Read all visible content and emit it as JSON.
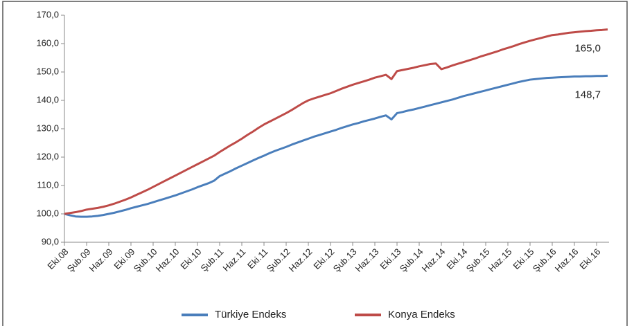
{
  "chart_data": {
    "type": "line",
    "categories": [
      "Eki.08",
      null,
      null,
      null,
      "Şub.09",
      null,
      null,
      null,
      "Haz.09",
      null,
      null,
      null,
      "Eki.09",
      null,
      null,
      null,
      "Şub.10",
      null,
      null,
      null,
      "Haz.10",
      null,
      null,
      null,
      "Eki.10",
      null,
      null,
      null,
      "Şub.11",
      null,
      null,
      null,
      "Haz.11",
      null,
      null,
      null,
      "Eki.11",
      null,
      null,
      null,
      "Şub.12",
      null,
      null,
      null,
      "Haz.12",
      null,
      null,
      null,
      "Eki.12",
      null,
      null,
      null,
      "Şub.13",
      null,
      null,
      null,
      "Haz.13",
      null,
      null,
      null,
      "Eki.13",
      null,
      null,
      null,
      "Şub.14",
      null,
      null,
      null,
      "Haz.14",
      null,
      null,
      null,
      "Eki.14",
      null,
      null,
      null,
      "Şub.15",
      null,
      null,
      null,
      "Haz.15",
      null,
      null,
      null,
      "Eki.15",
      null,
      null,
      null,
      "Şub.16",
      null,
      null,
      null,
      "Haz.16",
      null,
      null,
      null,
      "Eki.16",
      null,
      null
    ],
    "series": [
      {
        "name": "Türkiye Endeks",
        "color": "#4a7ebb",
        "values": [
          100.0,
          99.5,
          99.1,
          99.0,
          99.0,
          99.1,
          99.3,
          99.6,
          100.0,
          100.4,
          100.9,
          101.4,
          102.0,
          102.5,
          103.0,
          103.5,
          104.1,
          104.7,
          105.3,
          105.9,
          106.5,
          107.2,
          107.9,
          108.6,
          109.4,
          110.1,
          110.8,
          111.7,
          113.3,
          114.2,
          115.1,
          116.1,
          117.0,
          117.9,
          118.8,
          119.7,
          120.5,
          121.4,
          122.2,
          122.9,
          123.6,
          124.4,
          125.1,
          125.8,
          126.5,
          127.2,
          127.8,
          128.4,
          129.0,
          129.6,
          130.3,
          130.9,
          131.5,
          132.0,
          132.6,
          133.1,
          133.6,
          134.2,
          134.7,
          133.3,
          135.5,
          135.9,
          136.4,
          136.8,
          137.3,
          137.8,
          138.3,
          138.8,
          139.3,
          139.8,
          140.3,
          140.9,
          141.5,
          142.0,
          142.5,
          143.0,
          143.5,
          144.0,
          144.5,
          145.0,
          145.5,
          146.0,
          146.5,
          146.9,
          147.3,
          147.5,
          147.7,
          147.9,
          148.0,
          148.1,
          148.2,
          148.3,
          148.4,
          148.4,
          148.5,
          148.5,
          148.6,
          148.6,
          148.7
        ],
        "value_labels": [
          null,
          null,
          null,
          null,
          null,
          null,
          null,
          null,
          null,
          null,
          null,
          null,
          null,
          null,
          null,
          null,
          null,
          null,
          null,
          null,
          null,
          null,
          null,
          null,
          null,
          null,
          null,
          null,
          null,
          null,
          null,
          null,
          null,
          null,
          null,
          null,
          null,
          null,
          null,
          null,
          null,
          null,
          null,
          null,
          null,
          null,
          null,
          null,
          null,
          null,
          null,
          null,
          null,
          null,
          null,
          null,
          null,
          null,
          null,
          null,
          null,
          null,
          null,
          null,
          null,
          null,
          null,
          null,
          null,
          null,
          null,
          null,
          null,
          null,
          null,
          null,
          null,
          null,
          null,
          null,
          null,
          null,
          null,
          null,
          null,
          null,
          null,
          null,
          null,
          null,
          null,
          null,
          null,
          null,
          null,
          null,
          null,
          null,
          "148,7"
        ]
      },
      {
        "name": "Konya Endeks",
        "color": "#be4b48",
        "values": [
          100.0,
          100.3,
          100.6,
          101.0,
          101.5,
          101.8,
          102.1,
          102.5,
          103.0,
          103.6,
          104.3,
          105.0,
          105.8,
          106.7,
          107.6,
          108.5,
          109.5,
          110.5,
          111.5,
          112.5,
          113.5,
          114.5,
          115.5,
          116.5,
          117.5,
          118.5,
          119.5,
          120.5,
          121.8,
          123.0,
          124.2,
          125.3,
          126.5,
          127.8,
          129.0,
          130.3,
          131.5,
          132.5,
          133.5,
          134.5,
          135.5,
          136.6,
          137.8,
          139.0,
          140.0,
          140.7,
          141.3,
          141.9,
          142.5,
          143.3,
          144.1,
          144.8,
          145.5,
          146.1,
          146.7,
          147.3,
          148.0,
          148.5,
          149.0,
          147.5,
          150.3,
          150.7,
          151.1,
          151.5,
          152.0,
          152.4,
          152.8,
          153.0,
          151.0,
          151.6,
          152.3,
          152.9,
          153.5,
          154.1,
          154.7,
          155.4,
          156.0,
          156.6,
          157.2,
          157.9,
          158.5,
          159.1,
          159.8,
          160.4,
          161.0,
          161.5,
          162.0,
          162.5,
          163.0,
          163.2,
          163.5,
          163.8,
          164.0,
          164.2,
          164.4,
          164.5,
          164.7,
          164.8,
          165.0
        ],
        "value_labels": [
          null,
          null,
          null,
          null,
          null,
          null,
          null,
          null,
          null,
          null,
          null,
          null,
          null,
          null,
          null,
          null,
          null,
          null,
          null,
          null,
          null,
          null,
          null,
          null,
          null,
          null,
          null,
          null,
          null,
          null,
          null,
          null,
          null,
          null,
          null,
          null,
          null,
          null,
          null,
          null,
          null,
          null,
          null,
          null,
          null,
          null,
          null,
          null,
          null,
          null,
          null,
          null,
          null,
          null,
          null,
          null,
          null,
          null,
          null,
          null,
          null,
          null,
          null,
          null,
          null,
          null,
          null,
          null,
          null,
          null,
          null,
          null,
          null,
          null,
          null,
          null,
          null,
          null,
          null,
          null,
          null,
          null,
          null,
          null,
          null,
          null,
          null,
          null,
          null,
          null,
          null,
          null,
          null,
          null,
          null,
          null,
          null,
          null,
          "165,0"
        ]
      }
    ],
    "ylim": [
      90,
      170
    ],
    "yticks": [
      {
        "value": 90,
        "label": "90,0"
      },
      {
        "value": 100,
        "label": "100,0"
      },
      {
        "value": 110,
        "label": "110,0"
      },
      {
        "value": 120,
        "label": "120,0"
      },
      {
        "value": 130,
        "label": "130,0"
      },
      {
        "value": 140,
        "label": "140,0"
      },
      {
        "value": 150,
        "label": "150,0"
      },
      {
        "value": 160,
        "label": "160,0"
      },
      {
        "value": 170,
        "label": "170,0"
      }
    ],
    "grid": false,
    "legend": "bottom"
  }
}
